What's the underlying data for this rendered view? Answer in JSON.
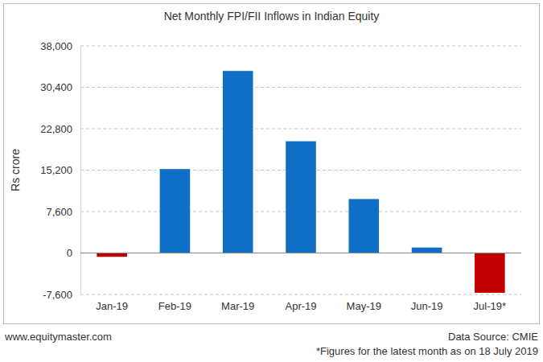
{
  "chart_data": {
    "type": "bar",
    "title": "Net Monthly FPI/FII Inflows in Indian Equity",
    "y_label": "Rs crore",
    "categories": [
      "Jan-19",
      "Feb-19",
      "Mar-19",
      "Apr-19",
      "May-19",
      "Jun-19",
      "Jul-19*"
    ],
    "values": [
      -700,
      15400,
      33400,
      20500,
      9900,
      1000,
      -7300
    ],
    "colors": [
      "#c00000",
      "#0f6fc6",
      "#0f6fc6",
      "#0f6fc6",
      "#0f6fc6",
      "#0f6fc6",
      "#c00000"
    ],
    "ylim": [
      -7600,
      38000
    ],
    "yticks": [
      {
        "value": -7600,
        "label": "-7,600"
      },
      0,
      {
        "value": 7600,
        "label": "7,600"
      },
      {
        "value": 15200,
        "label": "15,200"
      },
      {
        "value": 22800,
        "label": "22,800"
      },
      {
        "value": 30400,
        "label": "30,400"
      },
      {
        "value": 38000,
        "label": "38,000"
      }
    ],
    "grid": true,
    "annotations": [
      "www.equitymaster.com",
      "Data Source: CMIE",
      "*Figures for the latest month as on 18 July 2019"
    ]
  }
}
